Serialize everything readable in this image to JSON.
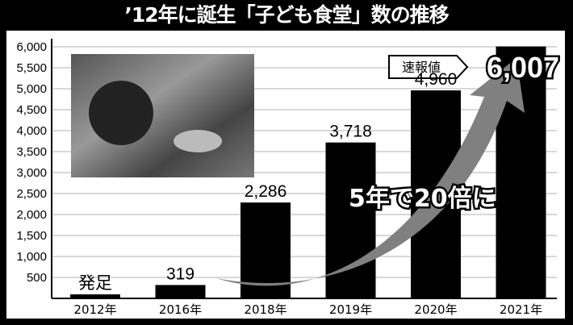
{
  "chart_data": {
    "type": "bar",
    "title": "’12年に誕生「子ども食堂」数の推移",
    "categories": [
      "2012年",
      "2016年",
      "2018年",
      "2019年",
      "2020年",
      "2021年"
    ],
    "values": [
      null,
      319,
      2286,
      3718,
      4960,
      6007
    ],
    "data_labels": [
      "発足",
      "319",
      "2,286",
      "3,718",
      "4,960",
      "6,007"
    ],
    "yticks": [
      "500",
      "1,000",
      "1,500",
      "2,000",
      "2,500",
      "3,000",
      "3,500",
      "4,000",
      "4,500",
      "5,000",
      "5,500",
      "6,000"
    ],
    "ylim": [
      0,
      6000
    ],
    "grid": true,
    "bar_color": "#000000",
    "callout": "速報値",
    "annotation": "5年で20倍に",
    "arrow_color": "#808080"
  }
}
